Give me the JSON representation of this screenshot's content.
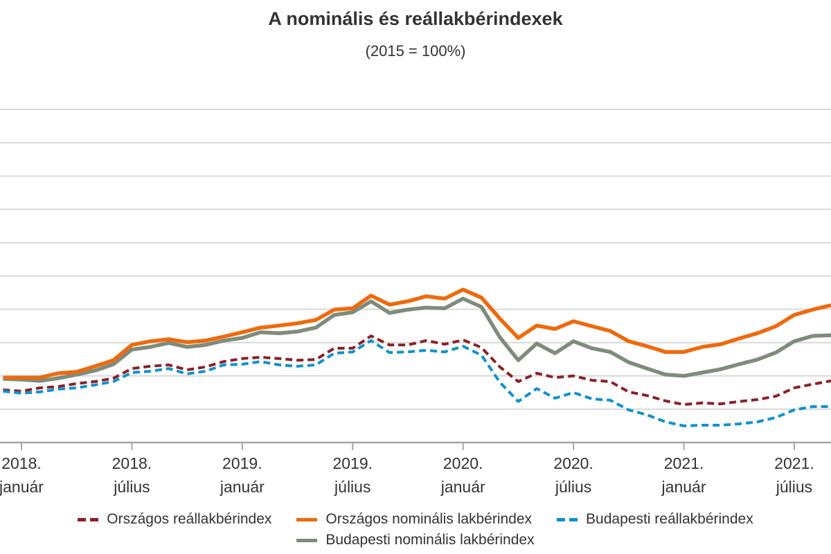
{
  "chart_data": {
    "type": "line",
    "title": "A nominális és reállakbérindexek",
    "subtitle": "(2015 = 100%)",
    "xlabel": "",
    "ylabel": "",
    "ylim": [
      100,
      200
    ],
    "y_grid_step": 10,
    "grid": true,
    "legend_position": "bottom",
    "x": [
      "2017-12",
      "2018-01",
      "2018-02",
      "2018-03",
      "2018-04",
      "2018-05",
      "2018-06",
      "2018-07",
      "2018-08",
      "2018-09",
      "2018-10",
      "2018-11",
      "2018-12",
      "2019-01",
      "2019-02",
      "2019-03",
      "2019-04",
      "2019-05",
      "2019-06",
      "2019-07",
      "2019-08",
      "2019-09",
      "2019-10",
      "2019-11",
      "2019-12",
      "2020-01",
      "2020-02",
      "2020-03",
      "2020-04",
      "2020-05",
      "2020-06",
      "2020-07",
      "2020-08",
      "2020-09",
      "2020-10",
      "2020-11",
      "2020-12",
      "2021-01",
      "2021-02",
      "2021-03",
      "2021-04",
      "2021-05",
      "2021-06",
      "2021-07",
      "2021-08",
      "2021-09"
    ],
    "x_ticks": [
      {
        "x": "2018-01",
        "year": "2018.",
        "month": "január"
      },
      {
        "x": "2018-07",
        "year": "2018.",
        "month": "július"
      },
      {
        "x": "2019-01",
        "year": "2019.",
        "month": "január"
      },
      {
        "x": "2019-07",
        "year": "2019.",
        "month": "július"
      },
      {
        "x": "2020-01",
        "year": "2020.",
        "month": "január"
      },
      {
        "x": "2020-07",
        "year": "2020.",
        "month": "július"
      },
      {
        "x": "2021-01",
        "year": "2021.",
        "month": "január"
      },
      {
        "x": "2021-07",
        "year": "2021.",
        "month": "július"
      }
    ],
    "series": [
      {
        "name": "Országos reállakbérindex",
        "color": "#8b2028",
        "dashed": true,
        "values": [
          115.8,
          115.4,
          116.4,
          116.8,
          117.7,
          118.3,
          119.3,
          122.2,
          122.9,
          123.3,
          121.8,
          122.7,
          124.3,
          125.2,
          125.6,
          125.2,
          124.7,
          124.9,
          128.3,
          128.3,
          132.0,
          129.3,
          129.3,
          130.6,
          129.5,
          130.8,
          128.5,
          122.7,
          118.3,
          120.8,
          119.5,
          120.0,
          118.7,
          118.3,
          115.2,
          114.1,
          112.5,
          111.4,
          111.9,
          111.6,
          112.3,
          112.9,
          113.9,
          116.4,
          117.5,
          118.5
        ]
      },
      {
        "name": "Országos nominális lakbérindex",
        "color": "#ee6a0c",
        "dashed": false,
        "values": [
          119.5,
          119.5,
          119.5,
          120.8,
          121.2,
          122.9,
          124.7,
          129.3,
          130.4,
          131.0,
          130.1,
          130.6,
          131.8,
          133.1,
          134.5,
          135.1,
          135.8,
          136.8,
          139.9,
          140.3,
          144.1,
          141.4,
          142.4,
          143.9,
          143.2,
          145.9,
          143.5,
          137.2,
          131.4,
          135.1,
          134.1,
          136.4,
          134.9,
          133.5,
          130.4,
          128.9,
          127.2,
          127.2,
          128.7,
          129.5,
          131.2,
          132.8,
          134.9,
          138.3,
          139.9,
          141.2
        ]
      },
      {
        "name": "Budapesti reállakbérindex",
        "color": "#0d92cf",
        "dashed": true,
        "values": [
          115.4,
          114.8,
          115.2,
          116.0,
          116.4,
          117.3,
          118.3,
          121.0,
          121.4,
          122.2,
          120.6,
          121.4,
          123.3,
          123.5,
          124.3,
          123.3,
          122.9,
          123.3,
          126.8,
          127.2,
          130.6,
          127.0,
          127.2,
          127.7,
          127.2,
          128.9,
          126.2,
          118.1,
          112.3,
          116.2,
          113.3,
          115.0,
          113.1,
          112.7,
          109.8,
          108.3,
          106.2,
          105.0,
          105.2,
          105.2,
          105.6,
          106.2,
          107.5,
          109.8,
          110.8,
          110.8
        ]
      },
      {
        "name": "Budapesti nominális lakbérindex",
        "color": "#7f8c7c",
        "dashed": false,
        "values": [
          119.1,
          118.9,
          118.5,
          119.3,
          120.4,
          121.6,
          123.5,
          127.9,
          128.7,
          129.9,
          128.7,
          129.3,
          130.6,
          131.4,
          133.1,
          132.8,
          133.3,
          134.5,
          138.3,
          139.1,
          142.4,
          138.9,
          139.9,
          140.5,
          140.3,
          143.2,
          140.7,
          131.6,
          124.7,
          129.7,
          126.8,
          130.4,
          128.3,
          127.2,
          124.1,
          122.2,
          120.4,
          120.0,
          121.0,
          122.0,
          123.5,
          124.9,
          127.0,
          130.4,
          132.0,
          132.2
        ]
      }
    ]
  }
}
